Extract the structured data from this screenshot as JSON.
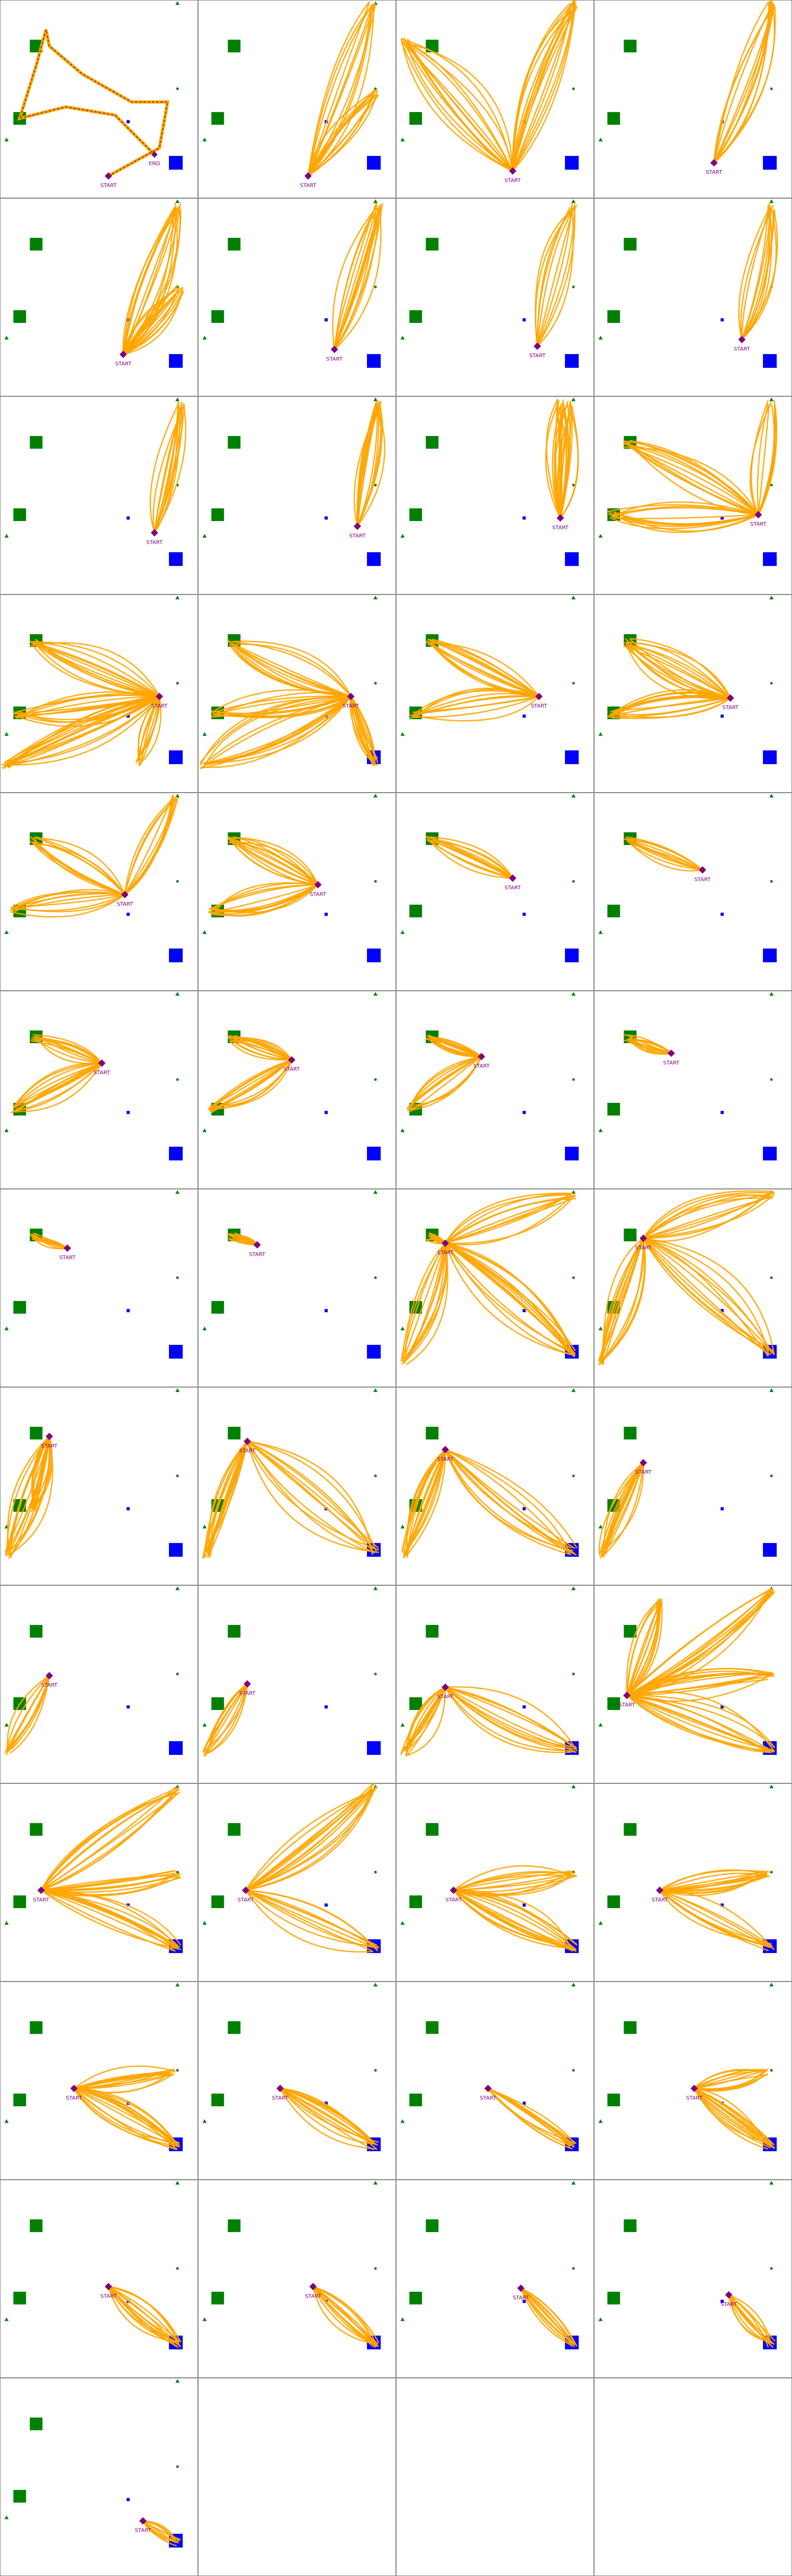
{
  "labels": {
    "start": "START",
    "end": "END"
  }
}
